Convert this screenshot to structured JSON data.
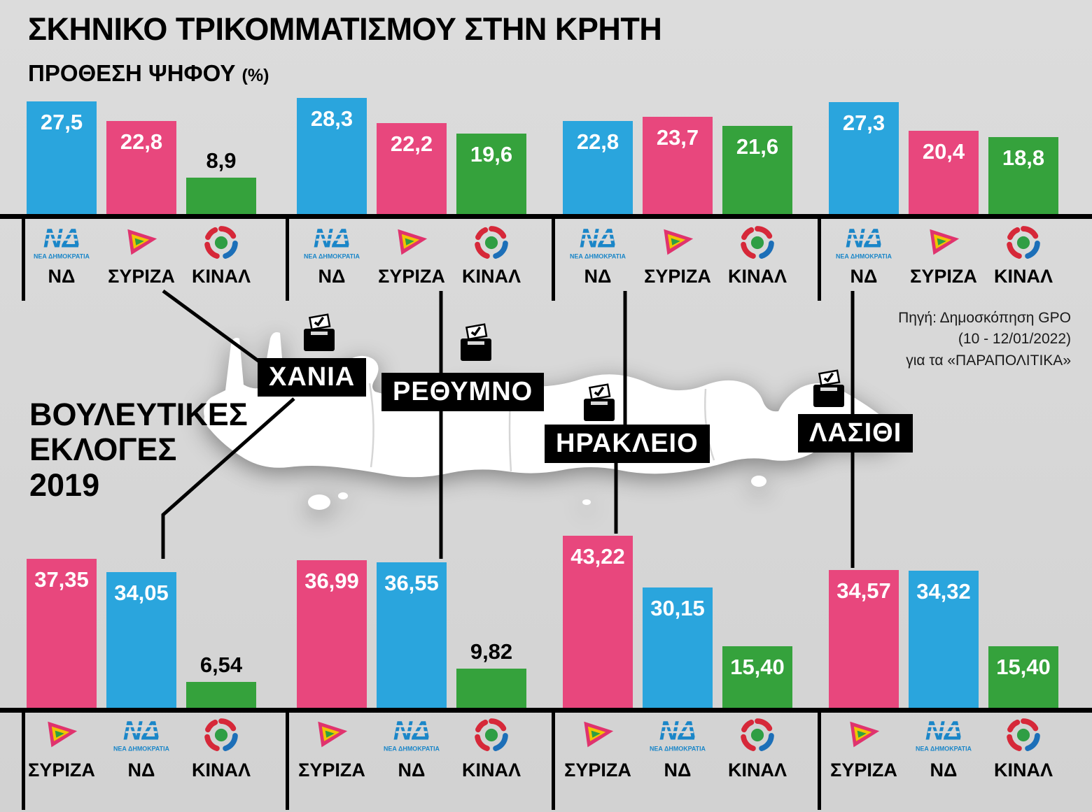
{
  "page": {
    "title": "ΣΚΗΝΙΚΟ ΤΡΙΚΟΜΜΑΤΙΣΜΟΥ ΣΤΗΝ ΚΡΗΤΗ",
    "subtitle": "ΠΡΟΘΕΣΗ ΨΗΦΟΥ",
    "subtitle_unit": "(%)"
  },
  "section_2019": {
    "line1": "ΒΟΥΛΕΥΤΙΚΕΣ",
    "line2": "ΕΚΛΟΓΕΣ",
    "line3": "2019"
  },
  "source": {
    "line1": "Πηγή: Δημοσκόπηση GPO",
    "line2": "(10 - 12/01/2022)",
    "line3": "για τα «ΠΑΡΑΠΟΛΙΤΙΚΑ»"
  },
  "regions": [
    "ΧΑΝΙΑ",
    "ΡΕΘΥΜΝΟ",
    "ΗΡΑΚΛΕΙΟ",
    "ΛΑΣΙΘΙ"
  ],
  "parties": {
    "ΝΔ": {
      "label": "ΝΔ",
      "color": "#2aa5dd",
      "logo": "nd-logo",
      "caption": "ΝΕΑ ΔΗΜΟΚΡΑΤΙΑ"
    },
    "ΣΥΡΙΖΑ": {
      "label": "ΣΥΡΙΖΑ",
      "color": "#e8477d",
      "logo": "syriza-logo"
    },
    "ΚΙΝΑΛ": {
      "label": "ΚΙΝΑΛ",
      "color": "#35a23c",
      "logo": "kinal-logo"
    }
  },
  "colors": {
    "background": "#d9d9d9",
    "nd_blue": "#2aa5dd",
    "syriza_pink": "#e8477d",
    "kinal_green": "#35a23c",
    "black": "#000000",
    "map_white": "#ffffff"
  },
  "chart_data": [
    {
      "type": "bar",
      "title": "ΠΡΟΘΕΣΗ ΨΗΦΟΥ (%)",
      "unit": "%",
      "ylim": [
        0,
        30
      ],
      "categories": [
        "ΧΑΝΙΑ",
        "ΡΕΘΥΜΝΟ",
        "ΗΡΑΚΛΕΙΟ",
        "ΛΑΣΙΘΙ"
      ],
      "groups": [
        {
          "region": "ΧΑΝΙΑ",
          "bars": [
            {
              "party": "ΝΔ",
              "label": "27,5",
              "value": 27.5
            },
            {
              "party": "ΣΥΡΙΖΑ",
              "label": "22,8",
              "value": 22.8
            },
            {
              "party": "ΚΙΝΑΛ",
              "label": "8,9",
              "value": 8.9
            }
          ]
        },
        {
          "region": "ΡΕΘΥΜΝΟ",
          "bars": [
            {
              "party": "ΝΔ",
              "label": "28,3",
              "value": 28.3
            },
            {
              "party": "ΣΥΡΙΖΑ",
              "label": "22,2",
              "value": 22.2
            },
            {
              "party": "ΚΙΝΑΛ",
              "label": "19,6",
              "value": 19.6
            }
          ]
        },
        {
          "region": "ΗΡΑΚΛΕΙΟ",
          "bars": [
            {
              "party": "ΝΔ",
              "label": "22,8",
              "value": 22.8
            },
            {
              "party": "ΣΥΡΙΖΑ",
              "label": "23,7",
              "value": 23.7
            },
            {
              "party": "ΚΙΝΑΛ",
              "label": "21,6",
              "value": 21.6
            }
          ]
        },
        {
          "region": "ΛΑΣΙΘΙ",
          "bars": [
            {
              "party": "ΝΔ",
              "label": "27,3",
              "value": 27.3
            },
            {
              "party": "ΣΥΡΙΖΑ",
              "label": "20,4",
              "value": 20.4
            },
            {
              "party": "ΚΙΝΑΛ",
              "label": "18,8",
              "value": 18.8
            }
          ]
        }
      ]
    },
    {
      "type": "bar",
      "title": "ΒΟΥΛΕΥΤΙΚΕΣ ΕΚΛΟΓΕΣ 2019",
      "unit": "%",
      "ylim": [
        0,
        45
      ],
      "categories": [
        "ΧΑΝΙΑ",
        "ΡΕΘΥΜΝΟ",
        "ΗΡΑΚΛΕΙΟ",
        "ΛΑΣΙΘΙ"
      ],
      "groups": [
        {
          "region": "ΧΑΝΙΑ",
          "bars": [
            {
              "party": "ΣΥΡΙΖΑ",
              "label": "37,35",
              "value": 37.35
            },
            {
              "party": "ΝΔ",
              "label": "34,05",
              "value": 34.05
            },
            {
              "party": "ΚΙΝΑΛ",
              "label": "6,54",
              "value": 6.54
            }
          ]
        },
        {
          "region": "ΡΕΘΥΜΝΟ",
          "bars": [
            {
              "party": "ΣΥΡΙΖΑ",
              "label": "36,99",
              "value": 36.99
            },
            {
              "party": "ΝΔ",
              "label": "36,55",
              "value": 36.55
            },
            {
              "party": "ΚΙΝΑΛ",
              "label": "9,82",
              "value": 9.82
            }
          ]
        },
        {
          "region": "ΗΡΑΚΛΕΙΟ",
          "bars": [
            {
              "party": "ΣΥΡΙΖΑ",
              "label": "43,22",
              "value": 43.22
            },
            {
              "party": "ΝΔ",
              "label": "30,15",
              "value": 30.15
            },
            {
              "party": "ΚΙΝΑΛ",
              "label": "15,40",
              "value": 15.4
            }
          ]
        },
        {
          "region": "ΛΑΣΙΘΙ",
          "bars": [
            {
              "party": "ΣΥΡΙΖΑ",
              "label": "34,57",
              "value": 34.57
            },
            {
              "party": "ΝΔ",
              "label": "34,32",
              "value": 34.32
            },
            {
              "party": "ΚΙΝΑΛ",
              "label": "15,40",
              "value": 15.4
            }
          ]
        }
      ]
    }
  ]
}
